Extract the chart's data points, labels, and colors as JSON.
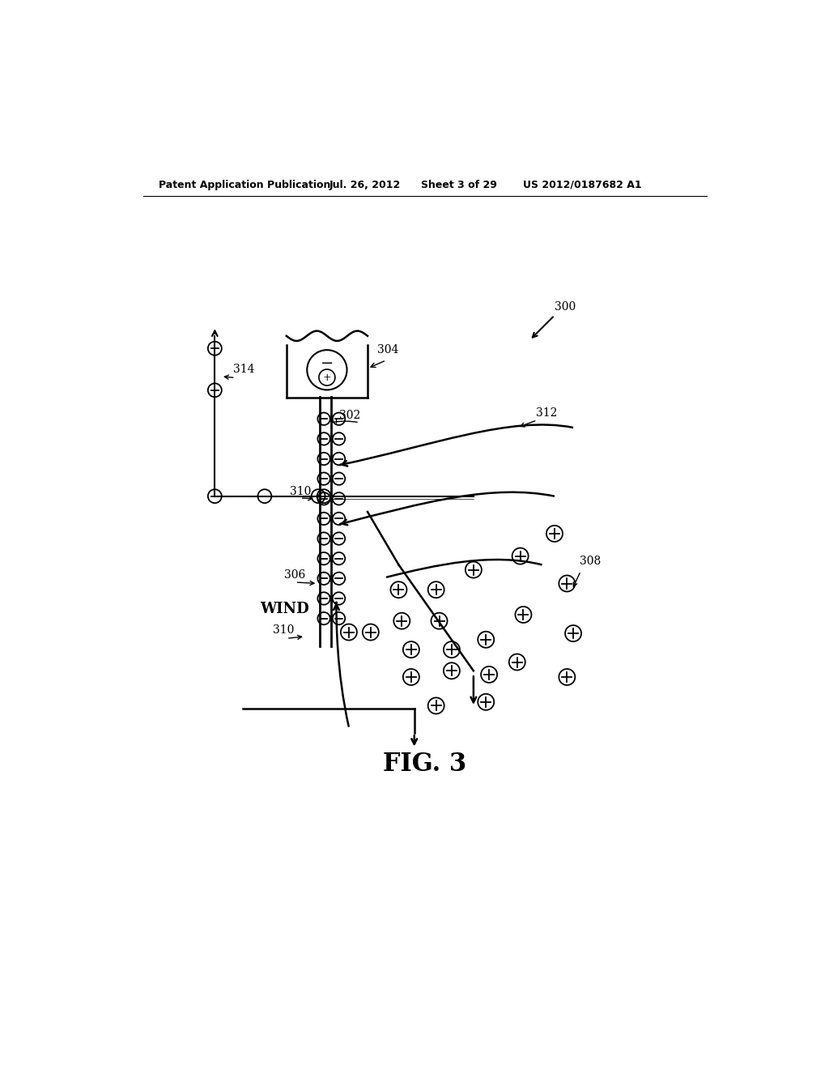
{
  "bg_color": "#ffffff",
  "header_text": "Patent Application Publication",
  "header_date": "Jul. 26, 2012",
  "header_sheet": "Sheet 3 of 29",
  "header_patent": "US 2012/0187682 A1",
  "fig_label": "FIG. 3",
  "label_300": "300",
  "label_302": "302",
  "label_304": "304",
  "label_306": "306",
  "label_308": "308",
  "label_310a": "310",
  "label_310b": "310",
  "label_312": "312",
  "label_314": "314",
  "wind_text": "WIND"
}
